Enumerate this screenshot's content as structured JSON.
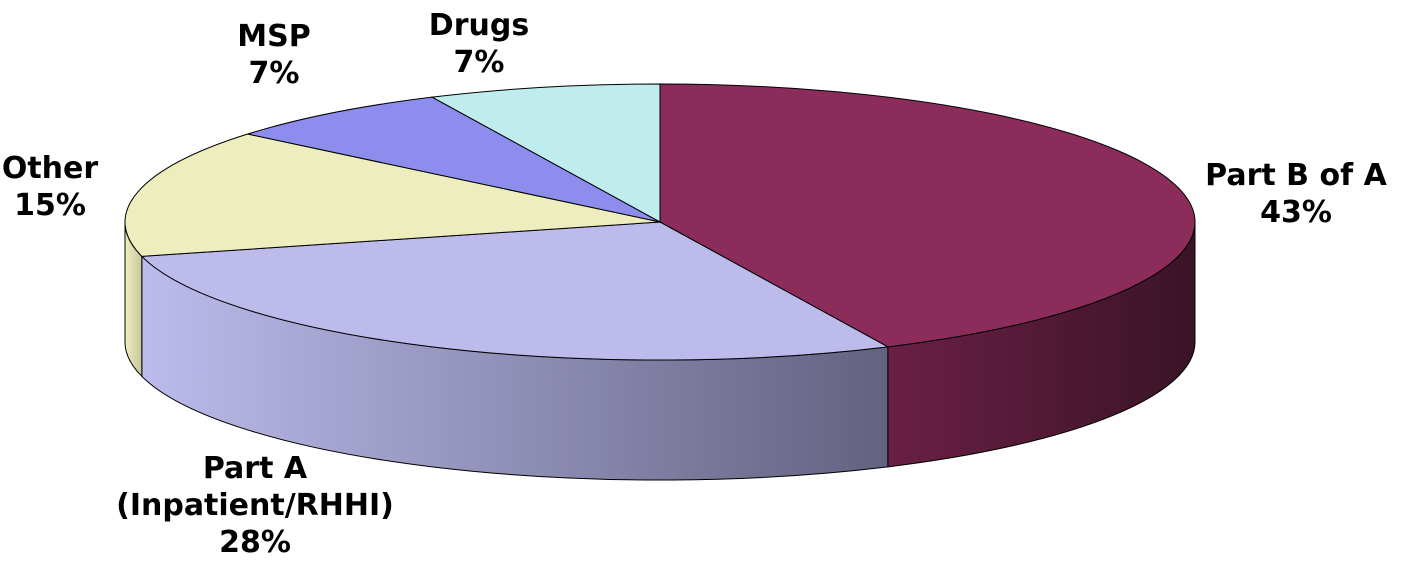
{
  "chart_data": {
    "type": "pie",
    "style": "3d-exploded-none",
    "title": "",
    "slices": [
      {
        "name": "Part B of A",
        "value": 43,
        "label_lines": [
          "Part B of A",
          "43%"
        ],
        "color_top": "#8B2C5B",
        "color_side_light": "#6A1F44",
        "color_side_dark": "#3A1426"
      },
      {
        "name": "Part A (Inpatient/RHHI)",
        "value": 28,
        "label_lines": [
          "Part A",
          "(Inpatient/RHHI)",
          "28%"
        ],
        "color_top": "#BCBBEC",
        "color_side_light": "#BCBBEC",
        "color_side_dark": "#636280"
      },
      {
        "name": "Other",
        "value": 15,
        "label_lines": [
          "Other",
          "15%"
        ],
        "color_top": "#EEEDBE",
        "color_side_light": "#EEEDBE",
        "color_side_dark": "#C9C89C"
      },
      {
        "name": "MSP",
        "value": 7,
        "label_lines": [
          "MSP",
          "7%"
        ],
        "color_top": "#8D8DEE",
        "color_side_light": "#8D8DEE",
        "color_side_dark": "#6E6EC0"
      },
      {
        "name": "Drugs",
        "value": 7,
        "label_lines": [
          "Drugs",
          "7%"
        ],
        "color_top": "#BFEDED",
        "color_side_light": "#BFEDED",
        "color_side_dark": "#98C4C4"
      }
    ],
    "legend": "none",
    "data_labels": "outside"
  }
}
